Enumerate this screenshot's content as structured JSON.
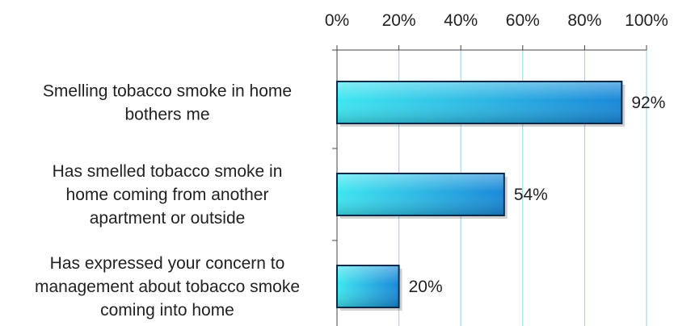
{
  "chart_data": {
    "type": "bar",
    "orientation": "horizontal",
    "categories": [
      "Smelling tobacco smoke in home bothers me",
      "Has smelled tobacco smoke in home coming from another apartment or outside",
      "Has expressed your concern to management about tobacco smoke coming into home"
    ],
    "category_label_lines": [
      [
        "Smelling tobacco smoke in home",
        "bothers me"
      ],
      [
        "Has smelled tobacco smoke in",
        "home coming from another",
        "apartment or outside"
      ],
      [
        "Has expressed your concern to",
        "management about tobacco smoke",
        "coming into home"
      ]
    ],
    "values": [
      92,
      54,
      20
    ],
    "value_labels": [
      "92%",
      "54%",
      "20%"
    ],
    "xlim": [
      0,
      100
    ],
    "x_ticks": [
      0,
      20,
      40,
      60,
      80,
      100
    ],
    "x_tick_labels": [
      "0%",
      "20%",
      "40%",
      "60%",
      "80%",
      "100%"
    ],
    "x_axis_position": "top",
    "grid": true,
    "legend": "none",
    "colors": {
      "bar_light": "#3fe6f0",
      "bar_dark": "#1a88d8",
      "bar_edge": "#0b2a4a",
      "gridline": "#8fd3ee",
      "axis": "#444444",
      "text": "#222222"
    }
  }
}
